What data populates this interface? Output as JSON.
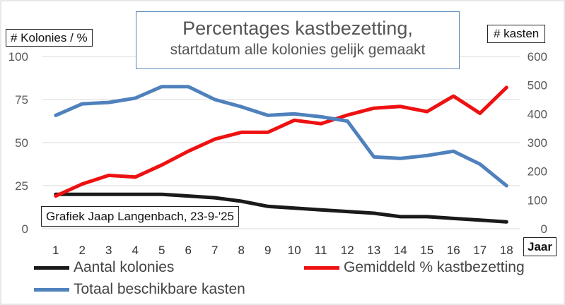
{
  "title_line1": "Percentages kastbezetting,",
  "title_line2": "startdatum alle kolonies gelijk gemaakt",
  "y_left_title": "# Kolonies  / %",
  "y_right_title": "# kasten",
  "x_title": "Jaar",
  "annotation": "Grafiek Jaap Langenbach, 23-9-'25",
  "legend": [
    {
      "label": "Aantal kolonies",
      "color": "#1a1a1a"
    },
    {
      "label": "Gemiddeld % kastbezetting",
      "color": "#ee1111"
    },
    {
      "label": "Totaal beschikbare kasten",
      "color": "#4f81bd"
    }
  ],
  "chart_data": {
    "type": "line",
    "x": [
      1,
      2,
      3,
      4,
      5,
      6,
      7,
      8,
      9,
      10,
      11,
      12,
      13,
      14,
      15,
      16,
      17,
      18
    ],
    "ylim_left": [
      0,
      100
    ],
    "yticks_left": [
      0,
      25,
      50,
      75,
      100
    ],
    "ylim_right": [
      0,
      600
    ],
    "yticks_right": [
      0,
      100,
      200,
      300,
      400,
      500,
      600
    ],
    "grid": "horizontal",
    "series": [
      {
        "name": "Aantal kolonies",
        "axis": "left",
        "color": "#1a1a1a",
        "values": [
          20,
          20,
          20,
          20,
          20,
          19,
          18,
          16,
          13,
          12,
          11,
          10,
          9,
          7,
          7,
          6,
          5,
          4
        ]
      },
      {
        "name": "Gemiddeld % kastbezetting",
        "axis": "left",
        "color": "#ee1111",
        "values": [
          19,
          26,
          31,
          30,
          37,
          45,
          52,
          56,
          56,
          63,
          61,
          66,
          70,
          71,
          68,
          77,
          67,
          82
        ]
      },
      {
        "name": "Totaal beschikbare kasten",
        "axis": "right",
        "color": "#4f81bd",
        "values": [
          395,
          435,
          440,
          455,
          495,
          495,
          450,
          425,
          395,
          400,
          390,
          375,
          250,
          245,
          255,
          270,
          225,
          150
        ]
      }
    ]
  }
}
